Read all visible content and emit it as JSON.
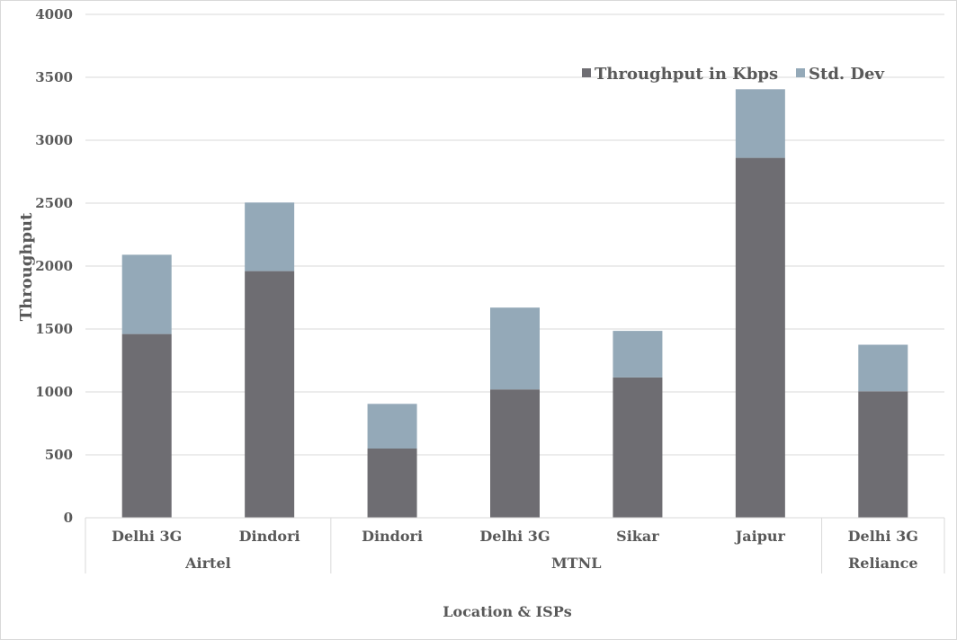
{
  "chart_data": {
    "type": "bar",
    "stacked": true,
    "title": "",
    "xlabel": "Location & ISPs",
    "ylabel": "Throughput",
    "ylim": [
      0,
      4000
    ],
    "yticks": [
      0,
      500,
      1000,
      1500,
      2000,
      2500,
      3000,
      3500,
      4000
    ],
    "grid": true,
    "legend_position": "top-right",
    "categories": [
      "Delhi 3G",
      "Dindori",
      "Dindori",
      "Delhi 3G",
      "Sikar",
      "Jaipur",
      "Delhi 3G"
    ],
    "groups": [
      {
        "name": "Airtel",
        "categories": [
          "Delhi 3G",
          "Dindori"
        ]
      },
      {
        "name": "MTNL",
        "categories": [
          "Dindori",
          "Delhi 3G",
          "Sikar",
          "Jaipur"
        ]
      },
      {
        "name": "Reliance",
        "categories": [
          "Delhi 3G"
        ]
      }
    ],
    "series": [
      {
        "name": "Throughput in Kbps",
        "color": "#6e6d72",
        "values": [
          1460,
          1960,
          550,
          1020,
          1115,
          2860,
          1005
        ]
      },
      {
        "name": "Std. Dev",
        "color": "#94a9b8",
        "values": [
          630,
          545,
          355,
          650,
          370,
          545,
          370
        ]
      }
    ]
  }
}
